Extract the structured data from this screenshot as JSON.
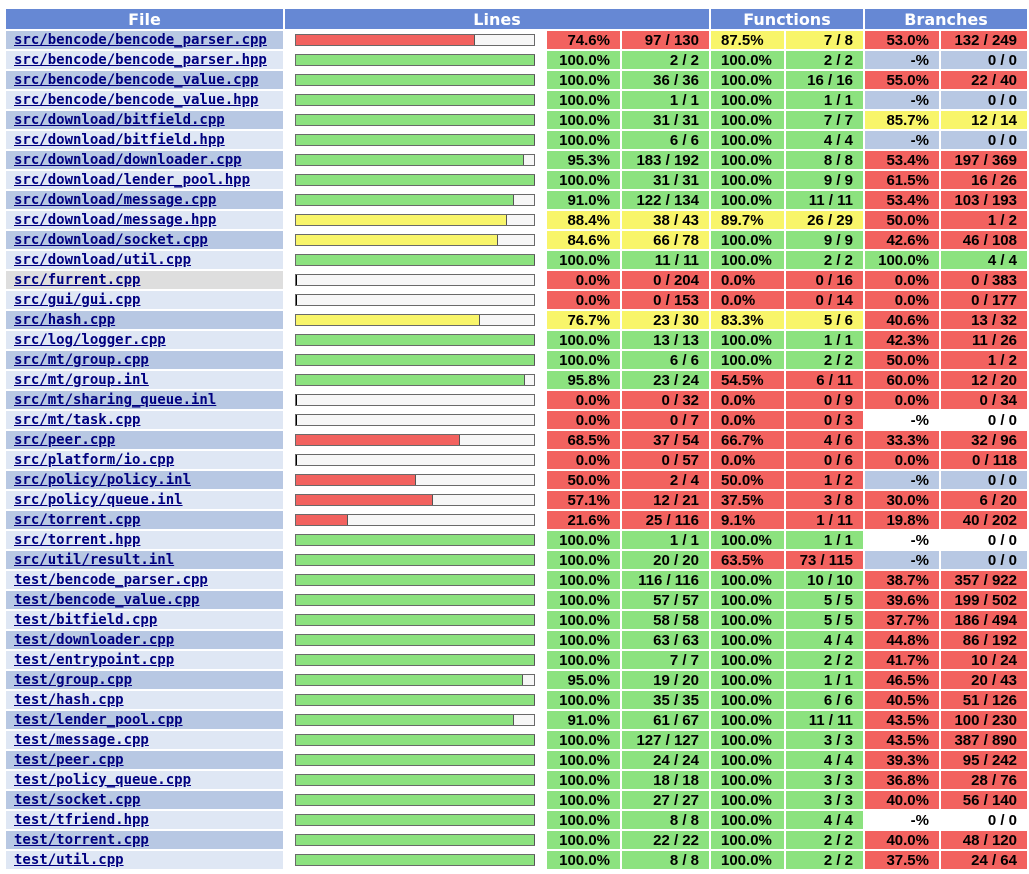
{
  "headers": {
    "file": "File",
    "lines": "Lines",
    "functions": "Functions",
    "branches": "Branches"
  },
  "colors": {
    "hi": "#8ce27f",
    "med": "#f8f56a",
    "lo": "#f2625f",
    "header": "#6688d4"
  },
  "rows": [
    {
      "file": "src/bencode/bencode_parser.cpp",
      "line_pct": "74.6%",
      "line_cnt": "97 / 130",
      "func_pct": "87.5%",
      "func_cnt": "7 / 8",
      "br_pct": "53.0%",
      "br_cnt": "132 / 249",
      "line_level": "lo",
      "func_level": "med",
      "br_level": "lo",
      "bar": 0.746
    },
    {
      "file": "src/bencode/bencode_parser.hpp",
      "line_pct": "100.0%",
      "line_cnt": "2 / 2",
      "func_pct": "100.0%",
      "func_cnt": "2 / 2",
      "br_pct": "-%",
      "br_cnt": "0 / 0",
      "line_level": "hi",
      "func_level": "hi",
      "br_level": "none",
      "bar": 1.0
    },
    {
      "file": "src/bencode/bencode_value.cpp",
      "line_pct": "100.0%",
      "line_cnt": "36 / 36",
      "func_pct": "100.0%",
      "func_cnt": "16 / 16",
      "br_pct": "55.0%",
      "br_cnt": "22 / 40",
      "line_level": "hi",
      "func_level": "hi",
      "br_level": "lo",
      "bar": 1.0
    },
    {
      "file": "src/bencode/bencode_value.hpp",
      "line_pct": "100.0%",
      "line_cnt": "1 / 1",
      "func_pct": "100.0%",
      "func_cnt": "1 / 1",
      "br_pct": "-%",
      "br_cnt": "0 / 0",
      "line_level": "hi",
      "func_level": "hi",
      "br_level": "none",
      "bar": 1.0
    },
    {
      "file": "src/download/bitfield.cpp",
      "line_pct": "100.0%",
      "line_cnt": "31 / 31",
      "func_pct": "100.0%",
      "func_cnt": "7 / 7",
      "br_pct": "85.7%",
      "br_cnt": "12 / 14",
      "line_level": "hi",
      "func_level": "hi",
      "br_level": "med",
      "bar": 1.0
    },
    {
      "file": "src/download/bitfield.hpp",
      "line_pct": "100.0%",
      "line_cnt": "6 / 6",
      "func_pct": "100.0%",
      "func_cnt": "4 / 4",
      "br_pct": "-%",
      "br_cnt": "0 / 0",
      "line_level": "hi",
      "func_level": "hi",
      "br_level": "none",
      "bar": 1.0
    },
    {
      "file": "src/download/downloader.cpp",
      "line_pct": "95.3%",
      "line_cnt": "183 / 192",
      "func_pct": "100.0%",
      "func_cnt": "8 / 8",
      "br_pct": "53.4%",
      "br_cnt": "197 / 369",
      "line_level": "hi",
      "func_level": "hi",
      "br_level": "lo",
      "bar": 0.953
    },
    {
      "file": "src/download/lender_pool.hpp",
      "line_pct": "100.0%",
      "line_cnt": "31 / 31",
      "func_pct": "100.0%",
      "func_cnt": "9 / 9",
      "br_pct": "61.5%",
      "br_cnt": "16 / 26",
      "line_level": "hi",
      "func_level": "hi",
      "br_level": "lo",
      "bar": 1.0
    },
    {
      "file": "src/download/message.cpp",
      "line_pct": "91.0%",
      "line_cnt": "122 / 134",
      "func_pct": "100.0%",
      "func_cnt": "11 / 11",
      "br_pct": "53.4%",
      "br_cnt": "103 / 193",
      "line_level": "hi",
      "func_level": "hi",
      "br_level": "lo",
      "bar": 0.91
    },
    {
      "file": "src/download/message.hpp",
      "line_pct": "88.4%",
      "line_cnt": "38 / 43",
      "func_pct": "89.7%",
      "func_cnt": "26 / 29",
      "br_pct": "50.0%",
      "br_cnt": "1 / 2",
      "line_level": "med",
      "func_level": "med",
      "br_level": "lo",
      "bar": 0.884
    },
    {
      "file": "src/download/socket.cpp",
      "line_pct": "84.6%",
      "line_cnt": "66 / 78",
      "func_pct": "100.0%",
      "func_cnt": "9 / 9",
      "br_pct": "42.6%",
      "br_cnt": "46 / 108",
      "line_level": "med",
      "func_level": "hi",
      "br_level": "lo",
      "bar": 0.846
    },
    {
      "file": "src/download/util.cpp",
      "line_pct": "100.0%",
      "line_cnt": "11 / 11",
      "func_pct": "100.0%",
      "func_cnt": "2 / 2",
      "br_pct": "100.0%",
      "br_cnt": "4 / 4",
      "line_level": "hi",
      "func_level": "hi",
      "br_level": "hi",
      "bar": 1.0
    },
    {
      "file": "src/furrent.cpp",
      "line_pct": "0.0%",
      "line_cnt": "0 / 204",
      "func_pct": "0.0%",
      "func_cnt": "0 / 16",
      "br_pct": "0.0%",
      "br_cnt": "0 / 383",
      "line_level": "lo",
      "func_level": "lo",
      "br_level": "lo",
      "bar": 0.0,
      "gray": true
    },
    {
      "file": "src/gui/gui.cpp",
      "line_pct": "0.0%",
      "line_cnt": "0 / 153",
      "func_pct": "0.0%",
      "func_cnt": "0 / 14",
      "br_pct": "0.0%",
      "br_cnt": "0 / 177",
      "line_level": "lo",
      "func_level": "lo",
      "br_level": "lo",
      "bar": 0.0
    },
    {
      "file": "src/hash.cpp",
      "line_pct": "76.7%",
      "line_cnt": "23 / 30",
      "func_pct": "83.3%",
      "func_cnt": "5 / 6",
      "br_pct": "40.6%",
      "br_cnt": "13 / 32",
      "line_level": "med",
      "func_level": "med",
      "br_level": "lo",
      "bar": 0.767
    },
    {
      "file": "src/log/logger.cpp",
      "line_pct": "100.0%",
      "line_cnt": "13 / 13",
      "func_pct": "100.0%",
      "func_cnt": "1 / 1",
      "br_pct": "42.3%",
      "br_cnt": "11 / 26",
      "line_level": "hi",
      "func_level": "hi",
      "br_level": "lo",
      "bar": 1.0
    },
    {
      "file": "src/mt/group.cpp",
      "line_pct": "100.0%",
      "line_cnt": "6 / 6",
      "func_pct": "100.0%",
      "func_cnt": "2 / 2",
      "br_pct": "50.0%",
      "br_cnt": "1 / 2",
      "line_level": "hi",
      "func_level": "hi",
      "br_level": "lo",
      "bar": 1.0
    },
    {
      "file": "src/mt/group.inl",
      "line_pct": "95.8%",
      "line_cnt": "23 / 24",
      "func_pct": "54.5%",
      "func_cnt": "6 / 11",
      "br_pct": "60.0%",
      "br_cnt": "12 / 20",
      "line_level": "hi",
      "func_level": "lo",
      "br_level": "lo",
      "bar": 0.958
    },
    {
      "file": "src/mt/sharing_queue.inl",
      "line_pct": "0.0%",
      "line_cnt": "0 / 32",
      "func_pct": "0.0%",
      "func_cnt": "0 / 9",
      "br_pct": "0.0%",
      "br_cnt": "0 / 34",
      "line_level": "lo",
      "func_level": "lo",
      "br_level": "lo",
      "bar": 0.0
    },
    {
      "file": "src/mt/task.cpp",
      "line_pct": "0.0%",
      "line_cnt": "0 / 7",
      "func_pct": "0.0%",
      "func_cnt": "0 / 3",
      "br_pct": "-%",
      "br_cnt": "0 / 0",
      "line_level": "lo",
      "func_level": "lo",
      "br_level": "none2",
      "bar": 0.0
    },
    {
      "file": "src/peer.cpp",
      "line_pct": "68.5%",
      "line_cnt": "37 / 54",
      "func_pct": "66.7%",
      "func_cnt": "4 / 6",
      "br_pct": "33.3%",
      "br_cnt": "32 / 96",
      "line_level": "lo",
      "func_level": "lo",
      "br_level": "lo",
      "bar": 0.685
    },
    {
      "file": "src/platform/io.cpp",
      "line_pct": "0.0%",
      "line_cnt": "0 / 57",
      "func_pct": "0.0%",
      "func_cnt": "0 / 6",
      "br_pct": "0.0%",
      "br_cnt": "0 / 118",
      "line_level": "lo",
      "func_level": "lo",
      "br_level": "lo",
      "bar": 0.0
    },
    {
      "file": "src/policy/policy.inl",
      "line_pct": "50.0%",
      "line_cnt": "2 / 4",
      "func_pct": "50.0%",
      "func_cnt": "1 / 2",
      "br_pct": "-%",
      "br_cnt": "0 / 0",
      "line_level": "lo",
      "func_level": "lo",
      "br_level": "none",
      "bar": 0.5
    },
    {
      "file": "src/policy/queue.inl",
      "line_pct": "57.1%",
      "line_cnt": "12 / 21",
      "func_pct": "37.5%",
      "func_cnt": "3 / 8",
      "br_pct": "30.0%",
      "br_cnt": "6 / 20",
      "line_level": "lo",
      "func_level": "lo",
      "br_level": "lo",
      "bar": 0.571
    },
    {
      "file": "src/torrent.cpp",
      "line_pct": "21.6%",
      "line_cnt": "25 / 116",
      "func_pct": "9.1%",
      "func_cnt": "1 / 11",
      "br_pct": "19.8%",
      "br_cnt": "40 / 202",
      "line_level": "lo",
      "func_level": "lo",
      "br_level": "lo",
      "bar": 0.216
    },
    {
      "file": "src/torrent.hpp",
      "line_pct": "100.0%",
      "line_cnt": "1 / 1",
      "func_pct": "100.0%",
      "func_cnt": "1 / 1",
      "br_pct": "-%",
      "br_cnt": "0 / 0",
      "line_level": "hi",
      "func_level": "hi",
      "br_level": "none2",
      "bar": 1.0
    },
    {
      "file": "src/util/result.inl",
      "line_pct": "100.0%",
      "line_cnt": "20 / 20",
      "func_pct": "63.5%",
      "func_cnt": "73 / 115",
      "br_pct": "-%",
      "br_cnt": "0 / 0",
      "line_level": "hi",
      "func_level": "lo",
      "br_level": "none",
      "bar": 1.0
    },
    {
      "file": "test/bencode_parser.cpp",
      "line_pct": "100.0%",
      "line_cnt": "116 / 116",
      "func_pct": "100.0%",
      "func_cnt": "10 / 10",
      "br_pct": "38.7%",
      "br_cnt": "357 / 922",
      "line_level": "hi",
      "func_level": "hi",
      "br_level": "lo",
      "bar": 1.0
    },
    {
      "file": "test/bencode_value.cpp",
      "line_pct": "100.0%",
      "line_cnt": "57 / 57",
      "func_pct": "100.0%",
      "func_cnt": "5 / 5",
      "br_pct": "39.6%",
      "br_cnt": "199 / 502",
      "line_level": "hi",
      "func_level": "hi",
      "br_level": "lo",
      "bar": 1.0
    },
    {
      "file": "test/bitfield.cpp",
      "line_pct": "100.0%",
      "line_cnt": "58 / 58",
      "func_pct": "100.0%",
      "func_cnt": "5 / 5",
      "br_pct": "37.7%",
      "br_cnt": "186 / 494",
      "line_level": "hi",
      "func_level": "hi",
      "br_level": "lo",
      "bar": 1.0
    },
    {
      "file": "test/downloader.cpp",
      "line_pct": "100.0%",
      "line_cnt": "63 / 63",
      "func_pct": "100.0%",
      "func_cnt": "4 / 4",
      "br_pct": "44.8%",
      "br_cnt": "86 / 192",
      "line_level": "hi",
      "func_level": "hi",
      "br_level": "lo",
      "bar": 1.0
    },
    {
      "file": "test/entrypoint.cpp",
      "line_pct": "100.0%",
      "line_cnt": "7 / 7",
      "func_pct": "100.0%",
      "func_cnt": "2 / 2",
      "br_pct": "41.7%",
      "br_cnt": "10 / 24",
      "line_level": "hi",
      "func_level": "hi",
      "br_level": "lo",
      "bar": 1.0
    },
    {
      "file": "test/group.cpp",
      "line_pct": "95.0%",
      "line_cnt": "19 / 20",
      "func_pct": "100.0%",
      "func_cnt": "1 / 1",
      "br_pct": "46.5%",
      "br_cnt": "20 / 43",
      "line_level": "hi",
      "func_level": "hi",
      "br_level": "lo",
      "bar": 0.95
    },
    {
      "file": "test/hash.cpp",
      "line_pct": "100.0%",
      "line_cnt": "35 / 35",
      "func_pct": "100.0%",
      "func_cnt": "6 / 6",
      "br_pct": "40.5%",
      "br_cnt": "51 / 126",
      "line_level": "hi",
      "func_level": "hi",
      "br_level": "lo",
      "bar": 1.0
    },
    {
      "file": "test/lender_pool.cpp",
      "line_pct": "91.0%",
      "line_cnt": "61 / 67",
      "func_pct": "100.0%",
      "func_cnt": "11 / 11",
      "br_pct": "43.5%",
      "br_cnt": "100 / 230",
      "line_level": "hi",
      "func_level": "hi",
      "br_level": "lo",
      "bar": 0.91
    },
    {
      "file": "test/message.cpp",
      "line_pct": "100.0%",
      "line_cnt": "127 / 127",
      "func_pct": "100.0%",
      "func_cnt": "3 / 3",
      "br_pct": "43.5%",
      "br_cnt": "387 / 890",
      "line_level": "hi",
      "func_level": "hi",
      "br_level": "lo",
      "bar": 1.0
    },
    {
      "file": "test/peer.cpp",
      "line_pct": "100.0%",
      "line_cnt": "24 / 24",
      "func_pct": "100.0%",
      "func_cnt": "4 / 4",
      "br_pct": "39.3%",
      "br_cnt": "95 / 242",
      "line_level": "hi",
      "func_level": "hi",
      "br_level": "lo",
      "bar": 1.0
    },
    {
      "file": "test/policy_queue.cpp",
      "line_pct": "100.0%",
      "line_cnt": "18 / 18",
      "func_pct": "100.0%",
      "func_cnt": "3 / 3",
      "br_pct": "36.8%",
      "br_cnt": "28 / 76",
      "line_level": "hi",
      "func_level": "hi",
      "br_level": "lo",
      "bar": 1.0
    },
    {
      "file": "test/socket.cpp",
      "line_pct": "100.0%",
      "line_cnt": "27 / 27",
      "func_pct": "100.0%",
      "func_cnt": "3 / 3",
      "br_pct": "40.0%",
      "br_cnt": "56 / 140",
      "line_level": "hi",
      "func_level": "hi",
      "br_level": "lo",
      "bar": 1.0
    },
    {
      "file": "test/tfriend.hpp",
      "line_pct": "100.0%",
      "line_cnt": "8 / 8",
      "func_pct": "100.0%",
      "func_cnt": "4 / 4",
      "br_pct": "-%",
      "br_cnt": "0 / 0",
      "line_level": "hi",
      "func_level": "hi",
      "br_level": "none2",
      "bar": 1.0
    },
    {
      "file": "test/torrent.cpp",
      "line_pct": "100.0%",
      "line_cnt": "22 / 22",
      "func_pct": "100.0%",
      "func_cnt": "2 / 2",
      "br_pct": "40.0%",
      "br_cnt": "48 / 120",
      "line_level": "hi",
      "func_level": "hi",
      "br_level": "lo",
      "bar": 1.0
    },
    {
      "file": "test/util.cpp",
      "line_pct": "100.0%",
      "line_cnt": "8 / 8",
      "func_pct": "100.0%",
      "func_cnt": "2 / 2",
      "br_pct": "37.5%",
      "br_cnt": "24 / 64",
      "line_level": "hi",
      "func_level": "hi",
      "br_level": "lo",
      "bar": 1.0
    }
  ]
}
